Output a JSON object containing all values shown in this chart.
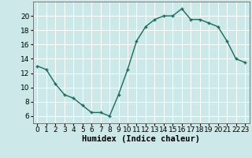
{
  "x": [
    0,
    1,
    2,
    3,
    4,
    5,
    6,
    7,
    8,
    9,
    10,
    11,
    12,
    13,
    14,
    15,
    16,
    17,
    18,
    19,
    20,
    21,
    22,
    23
  ],
  "y": [
    13.0,
    12.5,
    10.5,
    9.0,
    8.5,
    7.5,
    6.5,
    6.5,
    6.0,
    9.0,
    12.5,
    16.5,
    18.5,
    19.5,
    20.0,
    20.0,
    21.0,
    19.5,
    19.5,
    19.0,
    18.5,
    16.5,
    14.0,
    13.5
  ],
  "line_color": "#1a6b5a",
  "marker": "+",
  "marker_size": 3,
  "line_width": 1.0,
  "bg_color": "#cce8e8",
  "grid_color": "#ffffff",
  "xlabel": "Humidex (Indice chaleur)",
  "xlabel_fontsize": 7.5,
  "xlabel_fontweight": "bold",
  "ytick_values": [
    6,
    8,
    10,
    12,
    14,
    16,
    18,
    20
  ],
  "ylim": [
    5.0,
    22.0
  ],
  "xlim": [
    -0.5,
    23.5
  ],
  "tick_fontsize": 6.5
}
